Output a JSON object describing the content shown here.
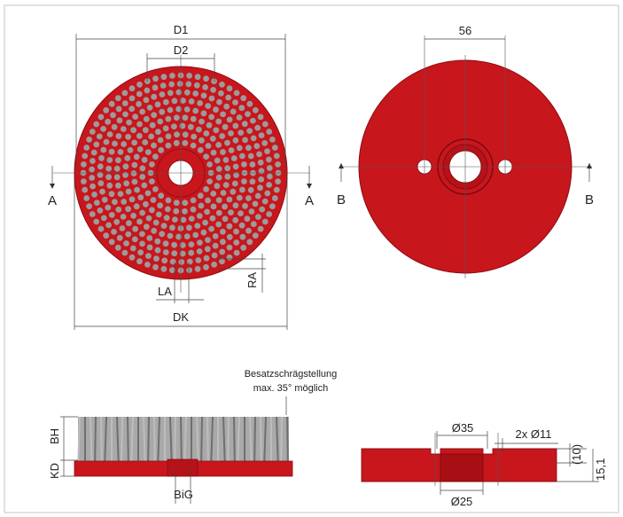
{
  "colors": {
    "disc_red": "#c8161d",
    "disc_red_dark": "#a80f15",
    "tuft_grey": "#9b9b9b",
    "line": "#444444",
    "frame": "#cfcfcf"
  },
  "front_view": {
    "d1_label": "D1",
    "d2_label": "D2",
    "dk_label": "DK",
    "la_label": "LA",
    "ra_label": "RA",
    "section_left": "A",
    "section_right": "A"
  },
  "back_view": {
    "dim_56": "56",
    "section_left": "B",
    "section_right": "B"
  },
  "side_view": {
    "note_line1": "Besatzschrägstellung",
    "note_line2": "max. 35° möglich",
    "bh_label": "BH",
    "kd_label": "KD",
    "big_label": "BiG"
  },
  "section_view": {
    "d35_label": "Ø35",
    "holes_label": "2x Ø11",
    "d25_label": "Ø25",
    "dim_10": "(10)",
    "dim_15": "15,1"
  }
}
